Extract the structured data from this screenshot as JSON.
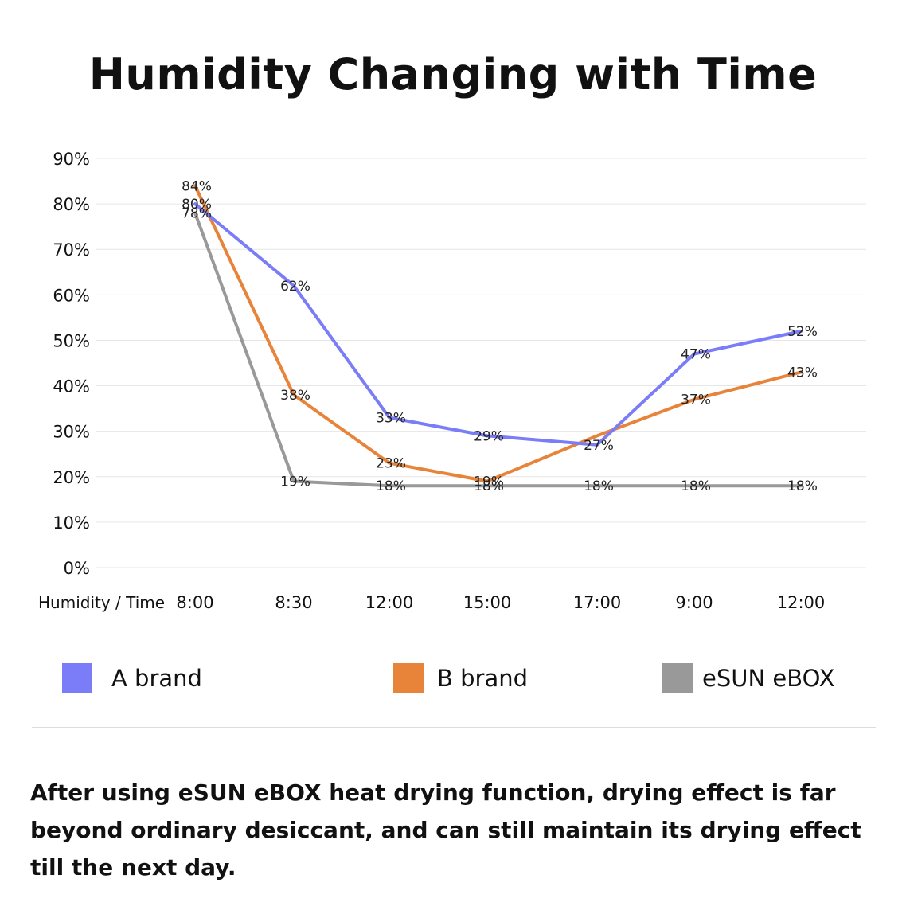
{
  "title": "Humidity Changing with Time",
  "caption": "After using eSUN eBOX heat drying function, drying effect is far beyond ordinary desiccant, and can still maintain its drying effect till the next day.",
  "chart_data": {
    "type": "line",
    "title": "Humidity Changing with Time",
    "xlabel": "Humidity / Time",
    "ylabel": "",
    "categories": [
      "8:00",
      "8:30",
      "12:00",
      "15:00",
      "17:00",
      "9:00",
      "12:00"
    ],
    "y_ticks": [
      "0%",
      "10%",
      "20%",
      "30%",
      "40%",
      "50%",
      "60%",
      "70%",
      "80%",
      "90%"
    ],
    "ylim": [
      0,
      90
    ],
    "grid": true,
    "legend_position": "bottom",
    "series": [
      {
        "name": "A brand",
        "color": "#7b7cf7",
        "values": [
          80,
          62,
          33,
          29,
          27,
          47,
          52
        ],
        "labels": [
          "80%",
          "62%",
          "33%",
          "29%",
          "27%",
          "47%",
          "52%"
        ]
      },
      {
        "name": "B brand",
        "color": "#e8833a",
        "values": [
          84,
          38,
          23,
          19,
          29,
          37,
          43
        ],
        "labels": [
          "84%",
          "38%",
          "23%",
          "19%",
          "",
          "37%",
          "43%"
        ]
      },
      {
        "name": "eSUN eBOX",
        "color": "#999999",
        "values": [
          78,
          19,
          18,
          18,
          18,
          18,
          18
        ],
        "labels": [
          "78%",
          "19%",
          "18%",
          "18%",
          "18%",
          "18%",
          "18%"
        ]
      }
    ]
  }
}
